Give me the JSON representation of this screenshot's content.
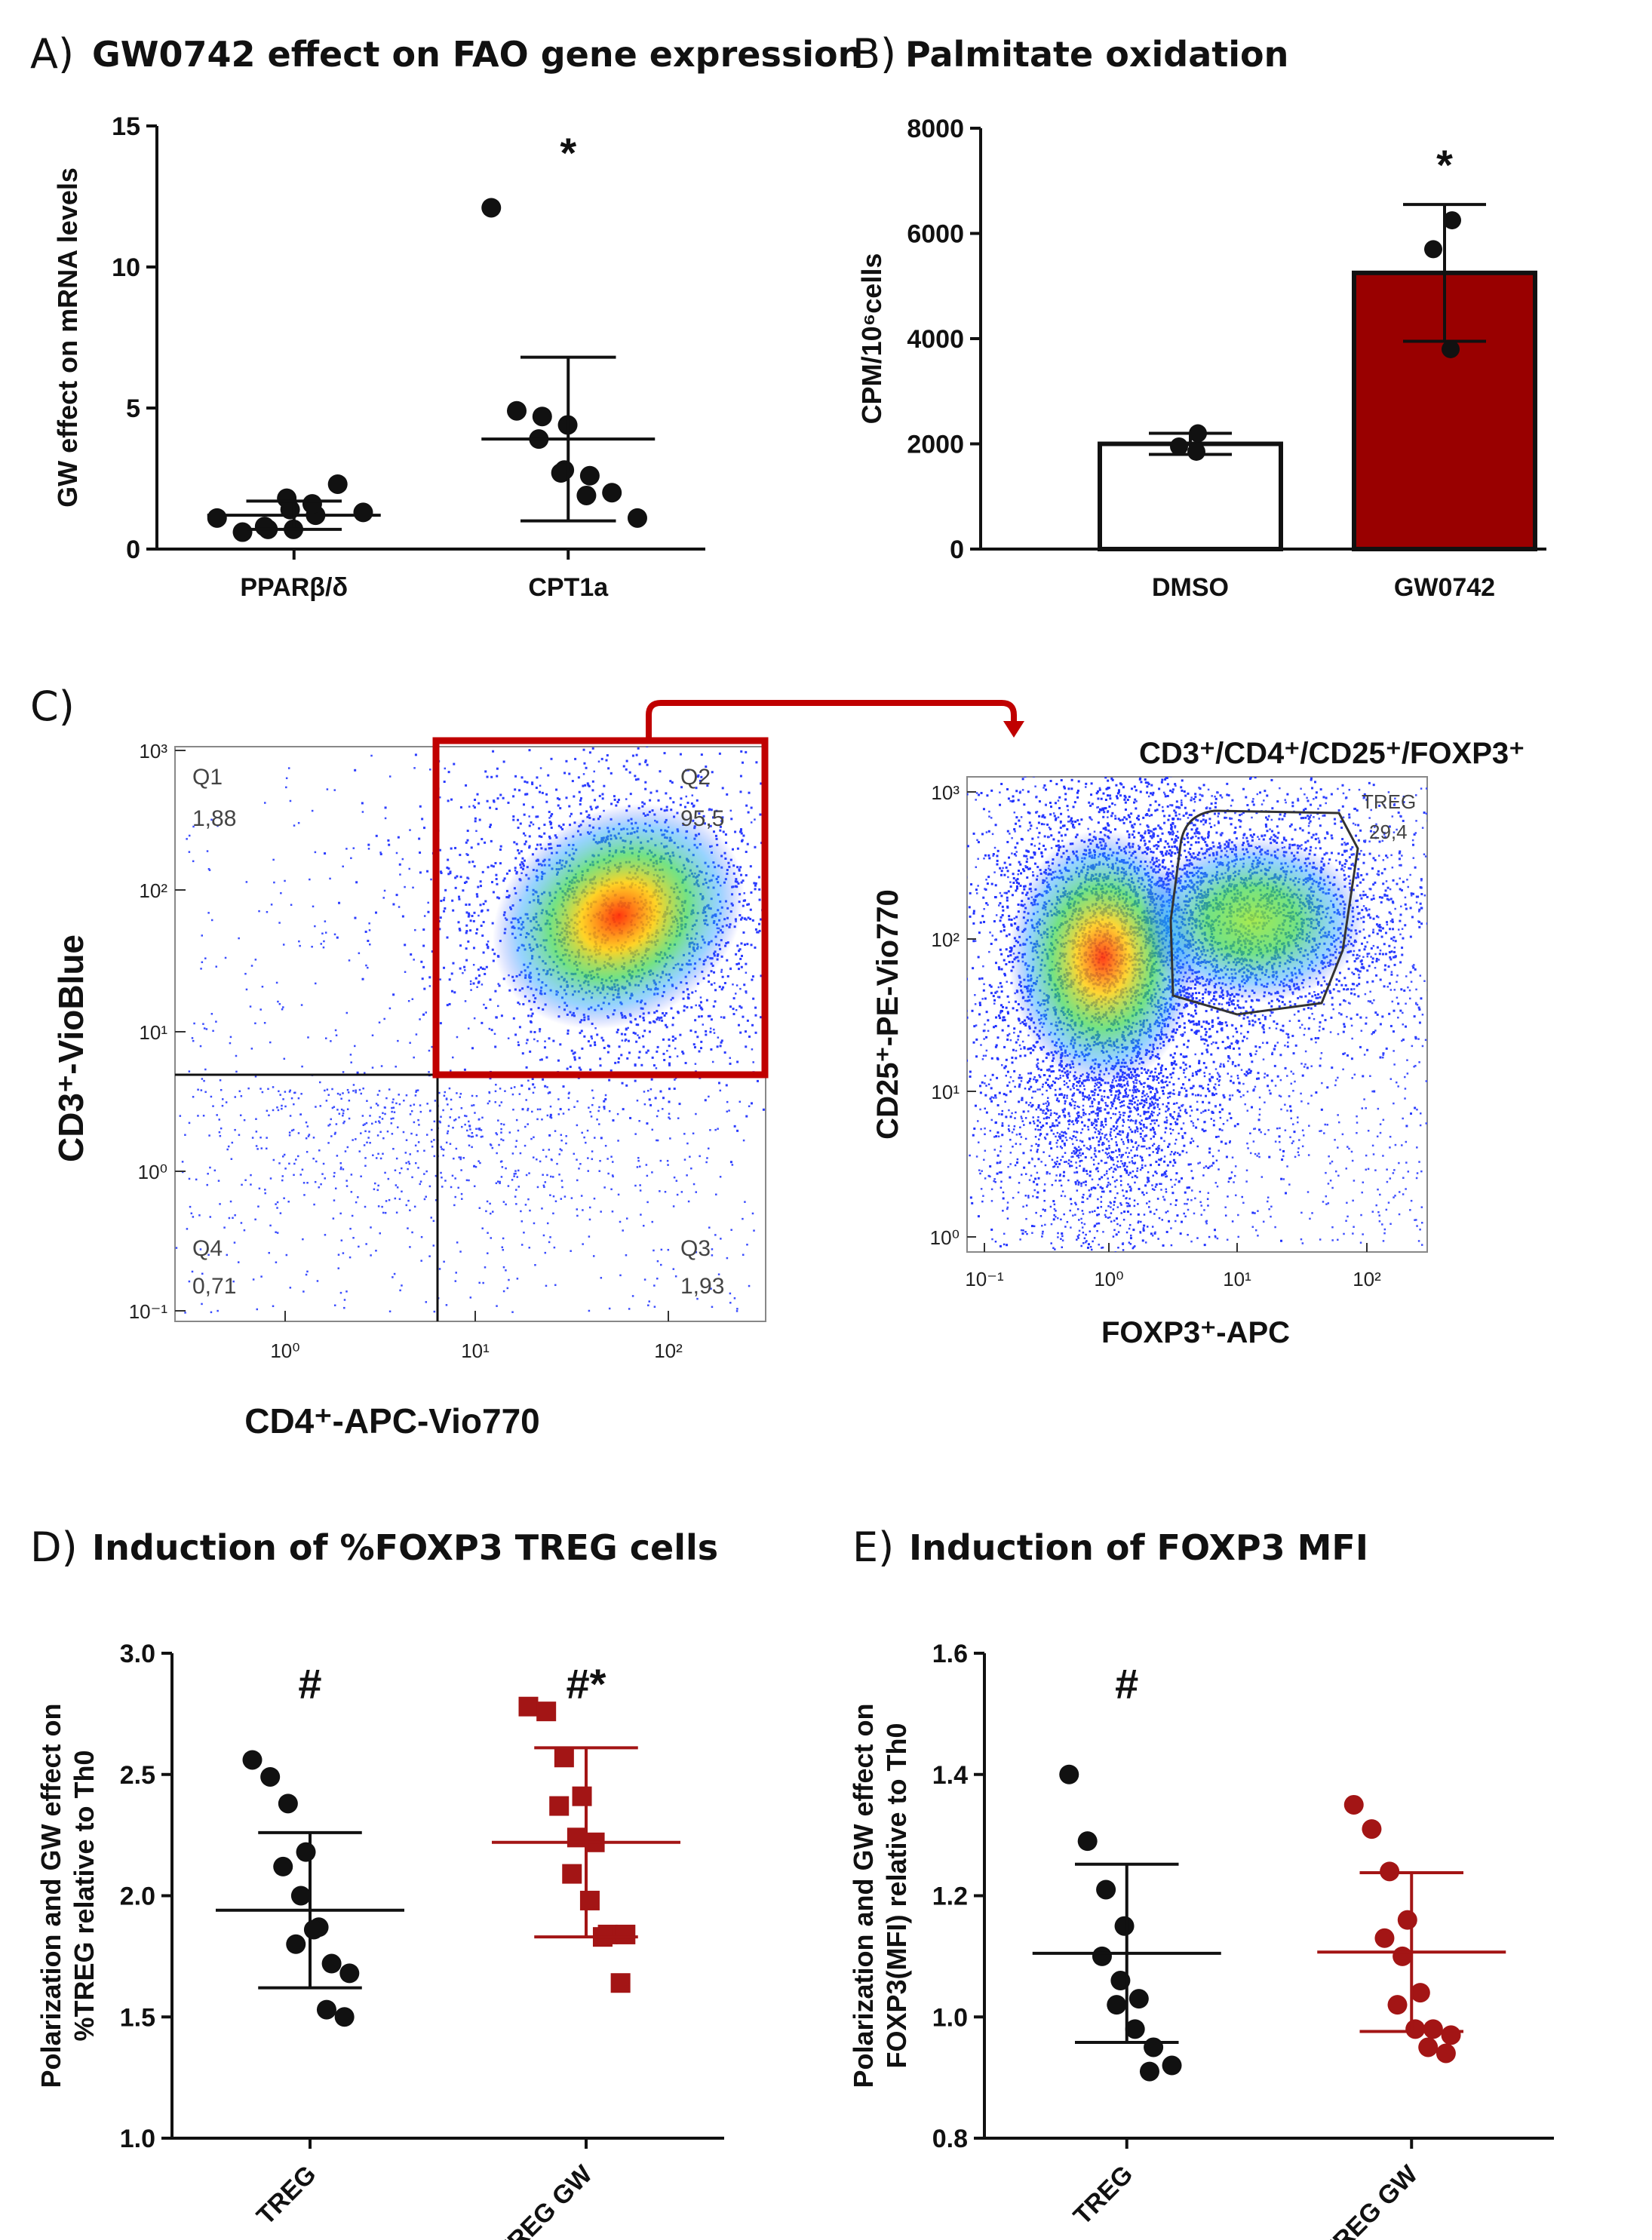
{
  "panels": {
    "A": {
      "letter": "A)",
      "title": "GW0742 effect on FAO gene expression"
    },
    "B": {
      "letter": "B)",
      "title": "Palmitate oxidation"
    },
    "C": {
      "letter": "C)"
    },
    "D": {
      "letter": "D)",
      "title": "Induction of %FOXP3 TREG cells"
    },
    "E": {
      "letter": "E)",
      "title": "Induction of FOXP3 MFI"
    }
  },
  "colors": {
    "black": "#111111",
    "red": "#a31515",
    "bar_red": "#990000",
    "gate": "#c00000"
  },
  "chart_data": [
    {
      "id": "A",
      "type": "scatter",
      "title": "GW0742 effect on FAO gene expression",
      "ylabel": "GW effect on mRNA levels",
      "xlabel": "",
      "ylim": [
        0,
        15
      ],
      "yticks": [
        "0",
        "5",
        "10",
        "15"
      ],
      "categories": [
        "PPARβ/δ",
        "CPT1a"
      ],
      "series": [
        {
          "name": "PPARβ/δ",
          "mean": 1.2,
          "sd": 0.5,
          "points": [
            1.1,
            0.6,
            0.7,
            0.7,
            0.8,
            1.4,
            1.2,
            1.8,
            1.6,
            2.3,
            1.3
          ],
          "color": "#111111"
        },
        {
          "name": "CPT1a",
          "mean": 3.9,
          "sd": 2.9,
          "points": [
            12.1,
            4.9,
            4.7,
            4.4,
            3.9,
            2.8,
            2.6,
            2.7,
            1.9,
            2.0,
            1.1
          ],
          "color": "#111111"
        }
      ],
      "annotations": [
        {
          "category": "CPT1a",
          "text": "*"
        }
      ]
    },
    {
      "id": "B",
      "type": "bar",
      "title": "Palmitate oxidation",
      "ylabel": "CPM/10⁶cells",
      "xlabel": "",
      "ylim": [
        0,
        8000
      ],
      "yticks": [
        "0",
        "2000",
        "4000",
        "6000",
        "8000"
      ],
      "categories": [
        "DMSO",
        "GW0742"
      ],
      "values": [
        2000,
        5250
      ],
      "errors": [
        200,
        1300
      ],
      "points": [
        [
          2200,
          1950,
          1850
        ],
        [
          6250,
          5700,
          3800
        ]
      ],
      "fills": [
        "#ffffff",
        "#990000"
      ],
      "annotations": [
        {
          "category": "GW0742",
          "text": "*"
        }
      ]
    },
    {
      "id": "C1",
      "type": "scatter",
      "xlabel": "CD4⁺-APC-Vio770",
      "ylabel": "CD3⁺-VioBlue",
      "xticks": [
        "10⁰",
        "10¹",
        "10²"
      ],
      "yticks": [
        "10⁻¹",
        "10⁰",
        "10¹",
        "10²",
        "10³"
      ],
      "quadrants": [
        {
          "name": "Q1",
          "value": "1,88"
        },
        {
          "name": "Q2",
          "value": "95,5"
        },
        {
          "name": "Q3",
          "value": "1,93"
        },
        {
          "name": "Q4",
          "value": "0,71"
        }
      ]
    },
    {
      "id": "C2",
      "type": "scatter",
      "title": "CD3⁺/CD4⁺/CD25⁺/FOXP3⁺",
      "xlabel": "FOXP3⁺-APC",
      "ylabel": "CD25⁺-PE-Vio770",
      "xticks": [
        "10⁻¹",
        "10⁰",
        "10¹",
        "10²"
      ],
      "yticks": [
        "10⁰",
        "10¹",
        "10²",
        "10³"
      ],
      "gate": {
        "name": "TREG",
        "value": "29,4"
      }
    },
    {
      "id": "D",
      "type": "scatter",
      "title": "Induction of %FOXP3 TREG cells",
      "ylabel": "Polarization and GW effect on %TREG relative to Th0",
      "ylim": [
        1.0,
        3.0
      ],
      "yticks": [
        "1.0",
        "1.5",
        "2.0",
        "2.5",
        "3.0"
      ],
      "categories": [
        "TREG",
        "TREG GW"
      ],
      "series": [
        {
          "name": "TREG",
          "mean": 1.94,
          "sd": 0.32,
          "points": [
            2.56,
            2.49,
            2.38,
            2.18,
            2.12,
            2.0,
            1.87,
            1.8,
            1.86,
            1.72,
            1.68,
            1.53,
            1.5
          ],
          "color": "#111111",
          "marker": "circle"
        },
        {
          "name": "TREG GW",
          "mean": 2.22,
          "sd": 0.39,
          "points": [
            2.78,
            2.76,
            2.57,
            2.41,
            2.37,
            2.24,
            2.22,
            2.09,
            1.98,
            1.84,
            1.84,
            1.83,
            1.64
          ],
          "color": "#a31515",
          "marker": "square"
        }
      ],
      "annotations": [
        {
          "category": "TREG",
          "text": "#"
        },
        {
          "category": "TREG GW",
          "text": "#*"
        }
      ]
    },
    {
      "id": "E",
      "type": "scatter",
      "title": "Induction of FOXP3 MFI",
      "ylabel": "Polarization and GW effect on FOXP3(MFI) relative to Th0",
      "ylim": [
        0.8,
        1.6
      ],
      "yticks": [
        "0.8",
        "1.0",
        "1.2",
        "1.4",
        "1.6"
      ],
      "categories": [
        "TREG",
        "TREG GW"
      ],
      "series": [
        {
          "name": "TREG",
          "mean": 1.105,
          "sd": 0.147,
          "points": [
            1.4,
            1.29,
            1.21,
            1.15,
            1.1,
            1.06,
            1.03,
            1.02,
            0.98,
            0.95,
            0.92,
            0.91
          ],
          "color": "#111111",
          "marker": "circle"
        },
        {
          "name": "TREG GW",
          "mean": 1.107,
          "sd": 0.131,
          "points": [
            1.35,
            1.31,
            1.24,
            1.16,
            1.13,
            1.1,
            1.04,
            1.02,
            0.98,
            0.98,
            0.97,
            0.95,
            0.94
          ],
          "color": "#a31515",
          "marker": "circle"
        }
      ],
      "annotations": [
        {
          "category": "TREG",
          "text": "#"
        }
      ]
    }
  ]
}
